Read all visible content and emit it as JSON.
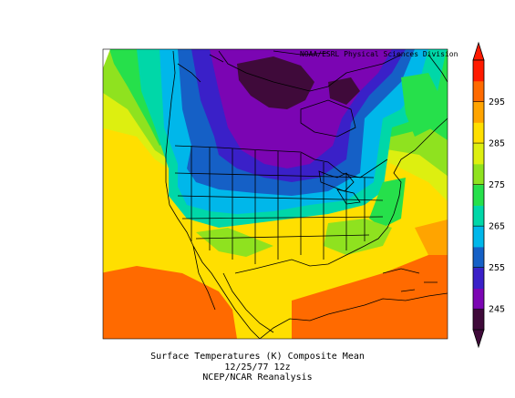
{
  "map": {
    "credit": "NOAA/ESRL Physical Sciences Division",
    "caption_line1": "Surface Temperatures (K)   Composite Mean",
    "caption_line2": "12/25/77 12z",
    "caption_line3": "NCEP/NCAR Reanalysis"
  },
  "colorbar": {
    "labels": [
      "245",
      "255",
      "265",
      "275",
      "285",
      "295"
    ],
    "colors": [
      "#3f0a3a",
      "#7b05b3",
      "#3a20c8",
      "#1560c6",
      "#00b7ea",
      "#00d7a8",
      "#26e04b",
      "#8fe21f",
      "#ddef10",
      "#ffdf00",
      "#ffa400",
      "#ff6a00",
      "#ff1a00"
    ]
  }
}
